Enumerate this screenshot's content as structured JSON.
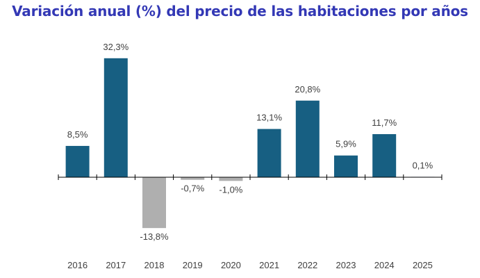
{
  "chart_data": {
    "type": "bar",
    "title": "Variación anual (%) del precio de las habitaciones por años",
    "categories": [
      "2016",
      "2017",
      "2018",
      "2019",
      "2020",
      "2021",
      "2022",
      "2023",
      "2024",
      "2025"
    ],
    "values": [
      8.5,
      32.3,
      -13.8,
      -0.7,
      -1.0,
      13.1,
      20.8,
      5.9,
      11.7,
      0.1
    ],
    "data_labels": [
      "8,5%",
      "32,3%",
      "-13,8%",
      "-0,7%",
      "-1,0%",
      "13,1%",
      "20,8%",
      "5,9%",
      "11,7%",
      "0,1%"
    ],
    "xlabel": "",
    "ylabel": "",
    "grid": false,
    "legend": "none",
    "colors": {
      "positive": "#175F82",
      "negative": "#AFAFAF",
      "title": "#3338B5"
    }
  }
}
